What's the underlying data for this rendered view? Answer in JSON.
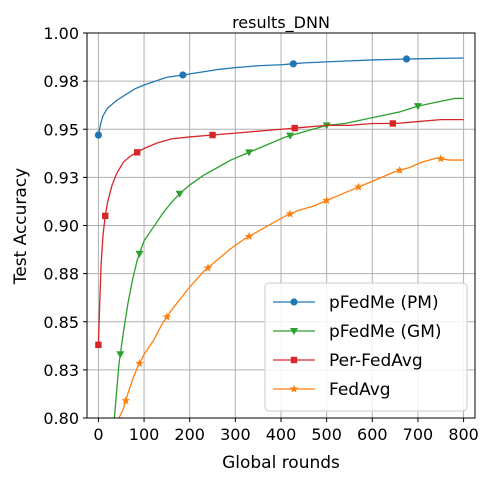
{
  "chart_data": {
    "type": "line",
    "title": "results_DNN",
    "xlabel": "Global rounds",
    "ylabel": "Test Accuracy",
    "xlim": [
      -25,
      825
    ],
    "ylim": [
      0.8,
      1.0
    ],
    "xticks": [
      0,
      100,
      200,
      300,
      400,
      500,
      600,
      700,
      800
    ],
    "xtick_labels": [
      "0",
      "100",
      "200",
      "300",
      "400",
      "500",
      "600",
      "700",
      "800"
    ],
    "yticks": [
      0.8,
      0.825,
      0.85,
      0.875,
      0.9,
      0.925,
      0.95,
      0.975,
      1.0
    ],
    "ytick_labels": [
      "0.80",
      "0.83",
      "0.85",
      "0.88",
      "0.90",
      "0.93",
      "0.95",
      "0.98",
      "1.00"
    ],
    "grid": true,
    "legend_position": "lower-right",
    "series": [
      {
        "name": "pFedMe (PM)",
        "color": "#1f77b4",
        "marker": "circle",
        "x": [
          0,
          5,
          10,
          20,
          40,
          60,
          80,
          100,
          125,
          150,
          180,
          220,
          260,
          300,
          350,
          400,
          427,
          450,
          500,
          550,
          600,
          650,
          675,
          700,
          750,
          800
        ],
        "y": [
          0.947,
          0.953,
          0.957,
          0.961,
          0.965,
          0.968,
          0.971,
          0.973,
          0.975,
          0.977,
          0.978,
          0.9795,
          0.981,
          0.982,
          0.983,
          0.9835,
          0.984,
          0.9845,
          0.985,
          0.9855,
          0.986,
          0.9863,
          0.9865,
          0.9866,
          0.9868,
          0.987
        ],
        "marker_x": [
          0,
          185,
          427,
          675
        ]
      },
      {
        "name": "pFedMe (GM)",
        "color": "#2ca02c",
        "marker": "triangle-down",
        "x": [
          35,
          45,
          55,
          65,
          75,
          85,
          100,
          120,
          140,
          160,
          180,
          200,
          230,
          260,
          290,
          320,
          350,
          380,
          410,
          440,
          470,
          500,
          540,
          580,
          620,
          660,
          700,
          740,
          780,
          800
        ],
        "y": [
          0.8,
          0.828,
          0.845,
          0.86,
          0.872,
          0.882,
          0.892,
          0.899,
          0.906,
          0.912,
          0.917,
          0.921,
          0.926,
          0.93,
          0.934,
          0.937,
          0.94,
          0.943,
          0.946,
          0.948,
          0.95,
          0.952,
          0.953,
          0.955,
          0.957,
          0.959,
          0.962,
          0.964,
          0.966,
          0.966
        ],
        "marker_x": [
          48,
          90,
          178,
          330,
          420,
          500,
          700
        ]
      },
      {
        "name": "Per-FedAvg",
        "color": "#d62728",
        "marker": "square",
        "x": [
          0,
          3,
          6,
          10,
          15,
          20,
          30,
          40,
          55,
          70,
          85,
          100,
          130,
          160,
          200,
          250,
          300,
          350,
          400,
          450,
          500,
          550,
          600,
          650,
          700,
          750,
          800
        ],
        "y": [
          0.838,
          0.86,
          0.88,
          0.895,
          0.905,
          0.912,
          0.921,
          0.927,
          0.933,
          0.936,
          0.938,
          0.94,
          0.943,
          0.945,
          0.946,
          0.947,
          0.948,
          0.949,
          0.95,
          0.951,
          0.952,
          0.952,
          0.953,
          0.953,
          0.954,
          0.955,
          0.955
        ],
        "marker_x": [
          0,
          15,
          85,
          250,
          430,
          645
        ]
      },
      {
        "name": "FedAvg",
        "color": "#ff7f0e",
        "marker": "star",
        "x": [
          45,
          55,
          65,
          75,
          85,
          100,
          120,
          140,
          160,
          180,
          200,
          230,
          260,
          290,
          320,
          350,
          380,
          410,
          440,
          470,
          500,
          530,
          560,
          590,
          620,
          650,
          680,
          710,
          740,
          770,
          800
        ],
        "y": [
          0.8,
          0.805,
          0.813,
          0.82,
          0.826,
          0.833,
          0.84,
          0.849,
          0.856,
          0.862,
          0.868,
          0.876,
          0.882,
          0.888,
          0.893,
          0.897,
          0.901,
          0.905,
          0.908,
          0.91,
          0.913,
          0.916,
          0.919,
          0.922,
          0.925,
          0.928,
          0.93,
          0.933,
          0.935,
          0.934,
          0.934
        ],
        "marker_x": [
          60,
          90,
          150,
          240,
          330,
          420,
          500,
          570,
          660,
          750
        ]
      }
    ]
  }
}
